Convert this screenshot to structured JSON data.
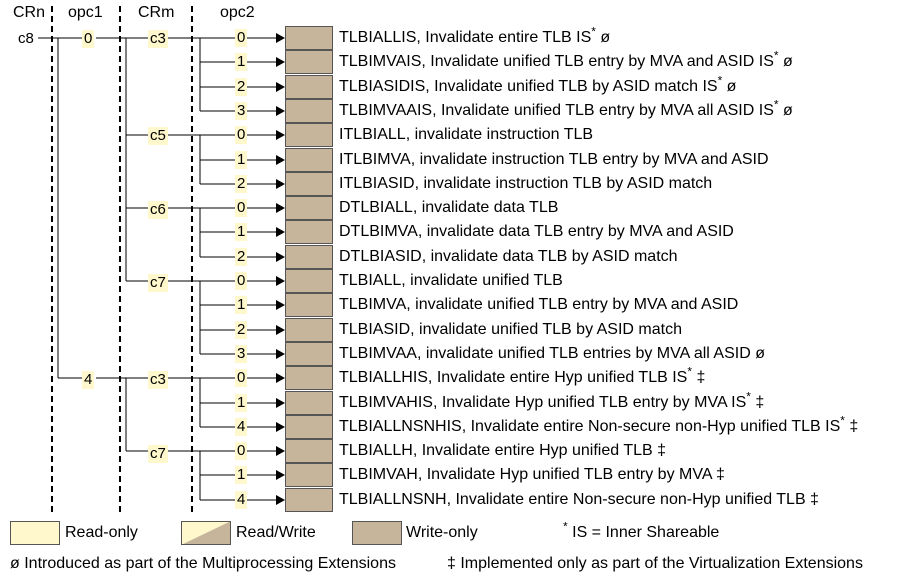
{
  "headers": {
    "crn": "CRn",
    "opc1": "opc1",
    "crm": "CRm",
    "opc2": "opc2"
  },
  "crn_value": "c8",
  "opc1_values": [
    "0",
    "4"
  ],
  "crm_values": [
    "c3",
    "c5",
    "c6",
    "c7",
    "c3",
    "c7"
  ],
  "rows": [
    {
      "opc2": "0",
      "name": "TLBIALLIS, Invalidate entire TLB IS",
      "marks": [
        "*"
      ],
      "suffix": " ø"
    },
    {
      "opc2": "1",
      "name": "TLBIMVAIS, Invalidate unified TLB entry by MVA and ASID IS",
      "marks": [
        "*"
      ],
      "suffix": " ø"
    },
    {
      "opc2": "2",
      "name": "TLBIASIDIS, Invalidate unified TLB by ASID match IS",
      "marks": [
        "*"
      ],
      "suffix": " ø"
    },
    {
      "opc2": "3",
      "name": "TLBIMVAAIS, Invalidate unified TLB entry by MVA all ASID IS",
      "marks": [
        "*"
      ],
      "suffix": " ø"
    },
    {
      "opc2": "0",
      "name": "ITLBIALL, invalidate instruction TLB",
      "marks": [],
      "suffix": ""
    },
    {
      "opc2": "1",
      "name": "ITLBIMVA, invalidate instruction TLB entry by MVA and ASID",
      "marks": [],
      "suffix": ""
    },
    {
      "opc2": "2",
      "name": "ITLBIASID, invalidate instruction TLB by ASID match",
      "marks": [],
      "suffix": ""
    },
    {
      "opc2": "0",
      "name": "DTLBIALL, invalidate data TLB",
      "marks": [],
      "suffix": ""
    },
    {
      "opc2": "1",
      "name": "DTLBIMVA, invalidate data TLB entry by MVA and ASID",
      "marks": [],
      "suffix": ""
    },
    {
      "opc2": "2",
      "name": "DTLBIASID, invalidate data TLB by ASID match",
      "marks": [],
      "suffix": ""
    },
    {
      "opc2": "0",
      "name": "TLBIALL, invalidate unified TLB",
      "marks": [],
      "suffix": ""
    },
    {
      "opc2": "1",
      "name": "TLBIMVA, invalidate unified TLB entry by MVA and ASID",
      "marks": [],
      "suffix": ""
    },
    {
      "opc2": "2",
      "name": "TLBIASID, invalidate unified TLB by ASID match",
      "marks": [],
      "suffix": ""
    },
    {
      "opc2": "3",
      "name": "TLBIMVAA, invalidate unified TLB entries by MVA all ASID",
      "marks": [],
      "suffix": " ø"
    },
    {
      "opc2": "0",
      "name": "TLBIALLHIS, Invalidate entire Hyp unified TLB IS",
      "marks": [
        "*"
      ],
      "suffix": " ‡"
    },
    {
      "opc2": "1",
      "name": "TLBIMVAHIS, Invalidate Hyp unified TLB entry by MVA IS",
      "marks": [
        "*"
      ],
      "suffix": " ‡"
    },
    {
      "opc2": "4",
      "name": "TLBIALLNSNHIS, Invalidate entire Non-secure non-Hyp unified TLB IS",
      "marks": [
        "*"
      ],
      "suffix": " ‡"
    },
    {
      "opc2": "0",
      "name": "TLBIALLH, Invalidate entire Hyp unified TLB",
      "marks": [],
      "suffix": " ‡"
    },
    {
      "opc2": "1",
      "name": "TLBIMVAH, Invalidate Hyp unified TLB entry by MVA",
      "marks": [],
      "suffix": " ‡"
    },
    {
      "opc2": "4",
      "name": "TLBIALLNSNH, Invalidate entire Non-secure non-Hyp unified TLB",
      "marks": [],
      "suffix": " ‡"
    }
  ],
  "legend": {
    "read_only": "Read-only",
    "read_write": "Read/Write",
    "write_only": "Write-only",
    "is_mark": "*",
    "is_note": " IS = Inner Shareable"
  },
  "footnotes": {
    "mp": "ø Introduced as part of the Multiprocessing Extensions",
    "virt": "‡ Implemented only as part of the Virtualization Extensions"
  },
  "colors": {
    "read_only": "#fff8cc",
    "write_only": "#c6b59a",
    "line": "#000000"
  }
}
